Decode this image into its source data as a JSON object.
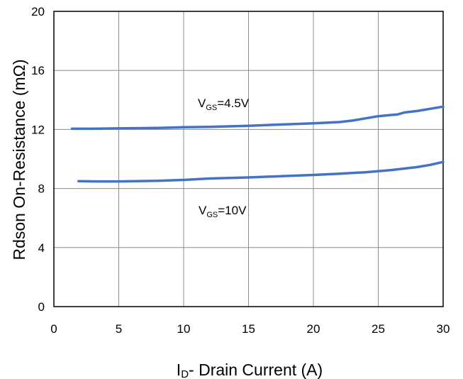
{
  "chart_data": {
    "type": "line",
    "title": "",
    "xlabel": {
      "main": "I",
      "subscript": "D",
      "rest": "- Drain Current (A)"
    },
    "ylabel": "Rdson On-Resistance (mΩ)",
    "xlim": [
      0,
      30
    ],
    "ylim": [
      0,
      20
    ],
    "xticks": [
      "0",
      "5",
      "10",
      "15",
      "20",
      "25",
      "30"
    ],
    "yticks": [
      "0",
      "4",
      "8",
      "12",
      "16",
      "20"
    ],
    "grid": true,
    "line_color": "#4472C4",
    "series": [
      {
        "label": {
          "main": "V",
          "subscript": "GS",
          "rest": "=4.5V"
        },
        "x": [
          1.4,
          3,
          5,
          8,
          10,
          12,
          15,
          18,
          20,
          22,
          23,
          24,
          25,
          26,
          26.5,
          27,
          28,
          29,
          30
        ],
        "y": [
          12.05,
          12.05,
          12.07,
          12.1,
          12.15,
          12.18,
          12.25,
          12.35,
          12.42,
          12.5,
          12.6,
          12.75,
          12.9,
          12.98,
          13.02,
          13.15,
          13.25,
          13.4,
          13.55
        ]
      },
      {
        "label": {
          "main": "V",
          "subscript": "GS",
          "rest": "=10V"
        },
        "x": [
          1.9,
          3,
          5,
          8,
          10,
          12,
          15,
          18,
          20,
          22,
          24,
          26,
          28,
          29,
          30
        ],
        "y": [
          8.5,
          8.48,
          8.48,
          8.52,
          8.58,
          8.68,
          8.75,
          8.85,
          8.92,
          9.0,
          9.1,
          9.25,
          9.45,
          9.6,
          9.8
        ]
      }
    ]
  }
}
